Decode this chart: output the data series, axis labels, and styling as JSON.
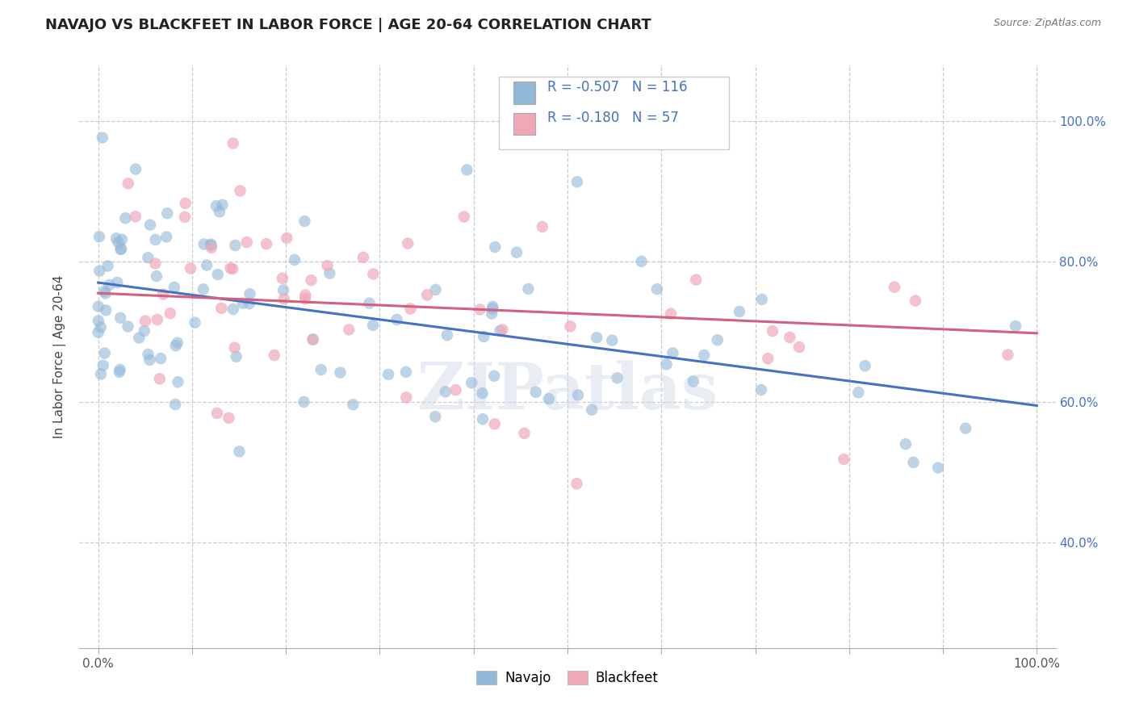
{
  "title": "NAVAJO VS BLACKFEET IN LABOR FORCE | AGE 20-64 CORRELATION CHART",
  "source": "Source: ZipAtlas.com",
  "ylabel": "In Labor Force | Age 20-64",
  "navajo_R": -0.507,
  "navajo_N": 116,
  "blackfeet_R": -0.18,
  "blackfeet_N": 57,
  "navajo_color": "#92b8d8",
  "blackfeet_color": "#f0a8b8",
  "navajo_line_color": "#4472c4",
  "blackfeet_line_color": "#d46080",
  "navajo_line_start_x": 0.0,
  "navajo_line_start_y": 0.77,
  "navajo_line_end_x": 1.0,
  "navajo_line_end_y": 0.595,
  "blackfeet_line_start_x": 0.0,
  "blackfeet_line_start_y": 0.755,
  "blackfeet_line_end_x": 1.0,
  "blackfeet_line_end_y": 0.698,
  "watermark": "ZIPatlas",
  "ytick_labels": [
    "40.0%",
    "60.0%",
    "80.0%",
    "100.0%"
  ],
  "ytick_values": [
    0.4,
    0.6,
    0.8,
    1.0
  ],
  "ylim_low": 0.25,
  "ylim_high": 1.08,
  "xlim_low": -0.02,
  "xlim_high": 1.02,
  "background_color": "#ffffff",
  "grid_color": "#cccccc",
  "title_fontsize": 13,
  "axis_label_fontsize": 11,
  "tick_fontsize": 11,
  "right_tick_color": "#4472c4"
}
